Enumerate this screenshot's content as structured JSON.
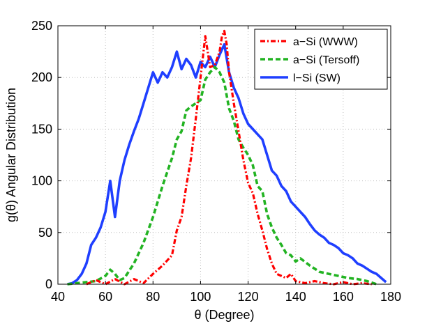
{
  "chart_data": {
    "type": "line",
    "title": "",
    "xlabel": "θ (Degree)",
    "ylabel": "g(θ) Angular Distribution",
    "xlim": [
      40,
      180
    ],
    "ylim": [
      0,
      250
    ],
    "xticks": [
      40,
      60,
      80,
      100,
      120,
      140,
      160,
      180
    ],
    "yticks": [
      0,
      50,
      100,
      150,
      200,
      250
    ],
    "xtick_labels": [
      "40",
      "60",
      "80",
      "100",
      "120",
      "140",
      "160",
      "180"
    ],
    "ytick_labels": [
      "0",
      "50",
      "100",
      "150",
      "200",
      "250"
    ],
    "grid": true,
    "legend_position": "top-right",
    "series": [
      {
        "name": "a−Si (WWW)",
        "color": "#ff0000",
        "style": "dash-dot",
        "x": [
          52,
          56,
          60,
          64,
          68,
          72,
          76,
          80,
          84,
          88,
          90,
          92,
          94,
          96,
          98,
          100,
          102,
          104,
          106,
          108,
          109,
          110,
          111,
          112,
          114,
          116,
          118,
          120,
          122,
          124,
          126,
          128,
          130,
          132,
          134,
          136,
          138,
          140,
          144,
          148,
          152,
          156,
          160,
          164,
          168,
          172
        ],
        "y": [
          0,
          4,
          0,
          5,
          0,
          5,
          1,
          10,
          18,
          28,
          52,
          65,
          95,
          122,
          160,
          200,
          240,
          210,
          212,
          225,
          240,
          245,
          232,
          205,
          175,
          148,
          120,
          98,
          88,
          68,
          52,
          34,
          20,
          10,
          8,
          6,
          10,
          3,
          1,
          3,
          1,
          0,
          2,
          0,
          1,
          0
        ]
      },
      {
        "name": "a−Si (Tersoff)",
        "color": "#22b322",
        "style": "dashed",
        "x": [
          44,
          48,
          52,
          56,
          60,
          62,
          64,
          66,
          68,
          72,
          76,
          80,
          84,
          88,
          90,
          92,
          94,
          96,
          98,
          100,
          102,
          104,
          106,
          108,
          110,
          112,
          114,
          116,
          118,
          120,
          122,
          124,
          126,
          128,
          130,
          132,
          134,
          136,
          138,
          140,
          142,
          146,
          150,
          154,
          158,
          162,
          166,
          170,
          174
        ],
        "y": [
          0,
          1,
          2,
          3,
          8,
          14,
          10,
          4,
          6,
          20,
          40,
          65,
          95,
          122,
          140,
          148,
          168,
          172,
          175,
          178,
          198,
          205,
          210,
          205,
          195,
          170,
          158,
          140,
          132,
          125,
          115,
          95,
          90,
          68,
          55,
          45,
          38,
          30,
          28,
          22,
          25,
          18,
          12,
          10,
          8,
          6,
          5,
          3,
          0
        ]
      },
      {
        "name": "l−Si (SW)",
        "color": "#1f3fff",
        "style": "solid",
        "x": [
          44,
          46,
          48,
          50,
          52,
          54,
          56,
          58,
          60,
          62,
          64,
          66,
          68,
          70,
          72,
          74,
          76,
          78,
          80,
          82,
          84,
          86,
          88,
          90,
          92,
          94,
          96,
          98,
          100,
          102,
          104,
          106,
          108,
          110,
          112,
          114,
          116,
          118,
          120,
          122,
          124,
          126,
          128,
          130,
          132,
          134,
          136,
          138,
          140,
          142,
          144,
          146,
          148,
          150,
          152,
          154,
          156,
          158,
          160,
          162,
          164,
          166,
          168,
          170,
          172,
          174,
          176,
          178
        ],
        "y": [
          0,
          1,
          4,
          10,
          20,
          38,
          45,
          55,
          70,
          100,
          65,
          100,
          120,
          135,
          148,
          160,
          175,
          190,
          205,
          195,
          205,
          200,
          210,
          225,
          208,
          218,
          212,
          200,
          215,
          210,
          220,
          210,
          222,
          232,
          205,
          190,
          180,
          165,
          155,
          150,
          145,
          140,
          125,
          110,
          105,
          95,
          90,
          80,
          75,
          70,
          65,
          58,
          52,
          48,
          45,
          40,
          38,
          35,
          30,
          28,
          25,
          20,
          18,
          15,
          12,
          10,
          6,
          2
        ]
      }
    ]
  }
}
